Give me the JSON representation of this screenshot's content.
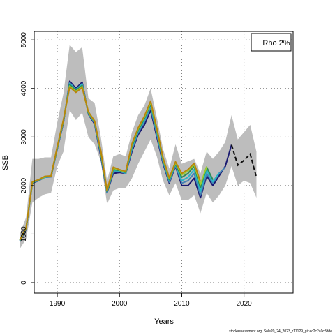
{
  "chart_data": {
    "type": "line",
    "title": "",
    "xlabel": "Years",
    "ylabel": "SSB",
    "xlim": [
      1983,
      2023
    ],
    "ylim": [
      -200,
      5000
    ],
    "xticks": [
      1990,
      2000,
      2010,
      2020
    ],
    "yticks": [
      0,
      1000,
      2000,
      3000,
      4000,
      5000
    ],
    "grid": true,
    "legend": {
      "position": "top-right",
      "text": "Rho 2%"
    },
    "band": {
      "x": [
        1984,
        1985,
        1986,
        1987,
        1988,
        1989,
        1990,
        1991,
        1992,
        1993,
        1994,
        1995,
        1996,
        1997,
        1998,
        1999,
        2000,
        2001,
        2002,
        2003,
        2004,
        2005,
        2006,
        2007,
        2008,
        2009,
        2010,
        2011,
        2012,
        2013,
        2014,
        2015,
        2016,
        2017,
        2018,
        2019,
        2020,
        2021,
        2022
      ],
      "upper": [
        1000,
        1350,
        2550,
        2550,
        2580,
        2580,
        3300,
        3900,
        4900,
        4750,
        4850,
        3800,
        3700,
        3000,
        2100,
        2600,
        2650,
        2600,
        3100,
        3450,
        3650,
        4000,
        3400,
        2750,
        2350,
        2850,
        2450,
        2500,
        2550,
        2250,
        2700,
        2550,
        2700,
        2900,
        3450,
        2950,
        3100,
        3250,
        2700
      ],
      "lower": [
        700,
        900,
        1650,
        1750,
        1820,
        1850,
        2400,
        2700,
        3550,
        3350,
        3500,
        3000,
        2850,
        2500,
        1620,
        1900,
        1950,
        1950,
        2150,
        2450,
        2700,
        2950,
        2600,
        2100,
        1800,
        2050,
        1700,
        1700,
        1800,
        1430,
        1850,
        1650,
        1800,
        2000,
        2400,
        2000,
        2100,
        2050,
        1750
      ]
    },
    "series": [
      {
        "color": "#191970",
        "x": [
          1984,
          1985,
          1986,
          1987,
          1988,
          1989,
          1990,
          1991,
          1992,
          1993,
          1994,
          1995,
          1996,
          1997,
          1998,
          1999,
          2000,
          2001,
          2002,
          2003,
          2004,
          2005,
          2006,
          2007,
          2008,
          2009,
          2010,
          2011,
          2012,
          2013,
          2014,
          2015,
          2016,
          2017,
          2018
        ],
        "values": [
          850,
          1100,
          2050,
          2100,
          2170,
          2180,
          2750,
          3300,
          4150,
          4000,
          4130,
          3470,
          3270,
          2600,
          1850,
          2250,
          2270,
          2250,
          2700,
          3050,
          3250,
          3550,
          3000,
          2450,
          2050,
          2400,
          2000,
          2000,
          2150,
          1750,
          2200,
          2000,
          2200,
          2400,
          2840
        ]
      },
      {
        "color": "#4682b4",
        "x": [
          1984,
          1985,
          1986,
          1987,
          1988,
          1989,
          1990,
          1991,
          1992,
          1993,
          1994,
          1995,
          1996,
          1997,
          1998,
          1999,
          2000,
          2001,
          2002,
          2003,
          2004,
          2005,
          2006,
          2007,
          2008,
          2009,
          2010,
          2011,
          2012,
          2013,
          2014,
          2015,
          2016,
          2017
        ],
        "values": [
          860,
          1110,
          2060,
          2100,
          2170,
          2180,
          2760,
          3320,
          4120,
          3980,
          4100,
          3480,
          3290,
          2640,
          1860,
          2290,
          2290,
          2250,
          2740,
          3090,
          3310,
          3610,
          3050,
          2480,
          2070,
          2420,
          2050,
          2100,
          2250,
          1800,
          2250,
          2050,
          2250,
          2380
        ]
      },
      {
        "color": "#2ab7c7",
        "x": [
          1984,
          1985,
          1986,
          1987,
          1988,
          1989,
          1990,
          1991,
          1992,
          1993,
          1994,
          1995,
          1996,
          1997,
          1998,
          1999,
          2000,
          2001,
          2002,
          2003,
          2004,
          2005,
          2006,
          2007,
          2008,
          2009,
          2010,
          2011,
          2012,
          2013,
          2014,
          2015,
          2016
        ],
        "values": [
          870,
          1120,
          2060,
          2110,
          2170,
          2190,
          2770,
          3330,
          4100,
          3970,
          4080,
          3490,
          3300,
          2660,
          1870,
          2310,
          2300,
          2260,
          2780,
          3120,
          3350,
          3650,
          3100,
          2510,
          2100,
          2440,
          2100,
          2170,
          2330,
          1880,
          2320,
          2080,
          2260
        ]
      },
      {
        "color": "#2e8b57",
        "x": [
          1984,
          1985,
          1986,
          1987,
          1988,
          1989,
          1990,
          1991,
          1992,
          1993,
          1994,
          1995,
          1996,
          1997,
          1998,
          1999,
          2000,
          2001,
          2002,
          2003,
          2004,
          2005,
          2006,
          2007,
          2008,
          2009,
          2010,
          2011,
          2012,
          2013,
          2014,
          2015
        ],
        "values": [
          870,
          1120,
          2070,
          2110,
          2180,
          2190,
          2780,
          3340,
          4080,
          3960,
          4060,
          3500,
          3310,
          2680,
          1880,
          2330,
          2310,
          2270,
          2810,
          3140,
          3380,
          3680,
          3130,
          2530,
          2120,
          2450,
          2170,
          2250,
          2400,
          1960,
          2380,
          2120
        ]
      },
      {
        "color": "#9acd32",
        "x": [
          1984,
          1985,
          1986,
          1987,
          1988,
          1989,
          1990,
          1991,
          1992,
          1993,
          1994,
          1995,
          1996,
          1997,
          1998,
          1999,
          2000,
          2001,
          2002,
          2003,
          2004,
          2005,
          2006,
          2007,
          2008,
          2009,
          2010,
          2011,
          2012,
          2013,
          2014
        ],
        "values": [
          880,
          1130,
          2070,
          2120,
          2180,
          2200,
          2790,
          3350,
          4050,
          3940,
          4040,
          3510,
          3320,
          2700,
          1890,
          2360,
          2320,
          2280,
          2840,
          3170,
          3410,
          3710,
          3160,
          2550,
          2140,
          2470,
          2220,
          2300,
          2430,
          2020,
          2390
        ]
      },
      {
        "color": "#b8860b",
        "x": [
          1984,
          1985,
          1986,
          1987,
          1988,
          1989,
          1990,
          1991,
          1992,
          1993,
          1994,
          1995,
          1996,
          1997,
          1998,
          1999,
          2000,
          2001,
          2002,
          2003,
          2004,
          2005,
          2006,
          2007,
          2008,
          2009,
          2010,
          2011,
          2012,
          2013
        ],
        "values": [
          880,
          1130,
          2080,
          2120,
          2190,
          2200,
          2800,
          3360,
          4030,
          3920,
          4020,
          3520,
          3330,
          2720,
          1900,
          2380,
          2330,
          2290,
          2860,
          3190,
          3430,
          3740,
          3180,
          2570,
          2160,
          2490,
          2250,
          2330,
          2460,
          2080
        ]
      }
    ],
    "forecast": {
      "color": "#111111",
      "x": [
        2018,
        2019,
        2020,
        2021,
        2022
      ],
      "values": [
        2840,
        2420,
        2520,
        2650,
        2170
      ]
    }
  },
  "footer": "stockassessment.org, Sole20_24_2023_r17129_git:ec2c2a0c8dde"
}
